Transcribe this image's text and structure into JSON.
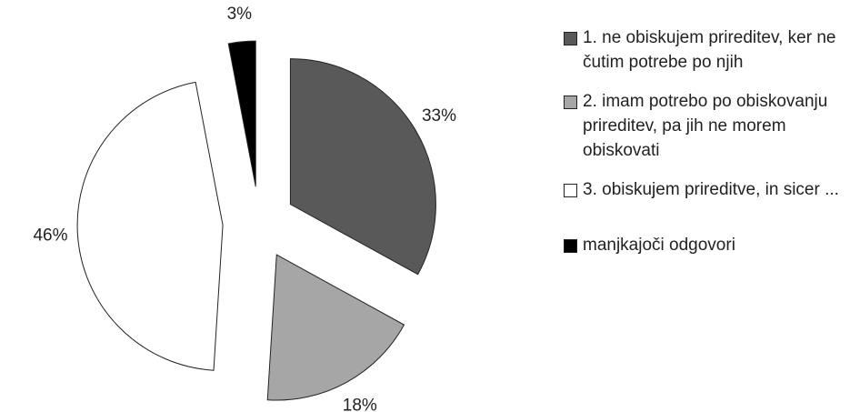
{
  "chart_data": {
    "type": "pie",
    "categories": [
      "1. ne obiskujem prireditev, ker ne čutim potrebe po njih",
      "2. imam potrebo po obiskovanju prireditev, pa jih ne morem obiskovati",
      "3. obiskujem prireditve, in sicer ...",
      "manjkajoči odgovori"
    ],
    "values": [
      33,
      18,
      46,
      3
    ],
    "value_labels": [
      "33%",
      "18%",
      "46%",
      "3%"
    ],
    "colors": [
      "#595959",
      "#a6a6a6",
      "#ffffff",
      "#000000"
    ],
    "legend": "right"
  }
}
